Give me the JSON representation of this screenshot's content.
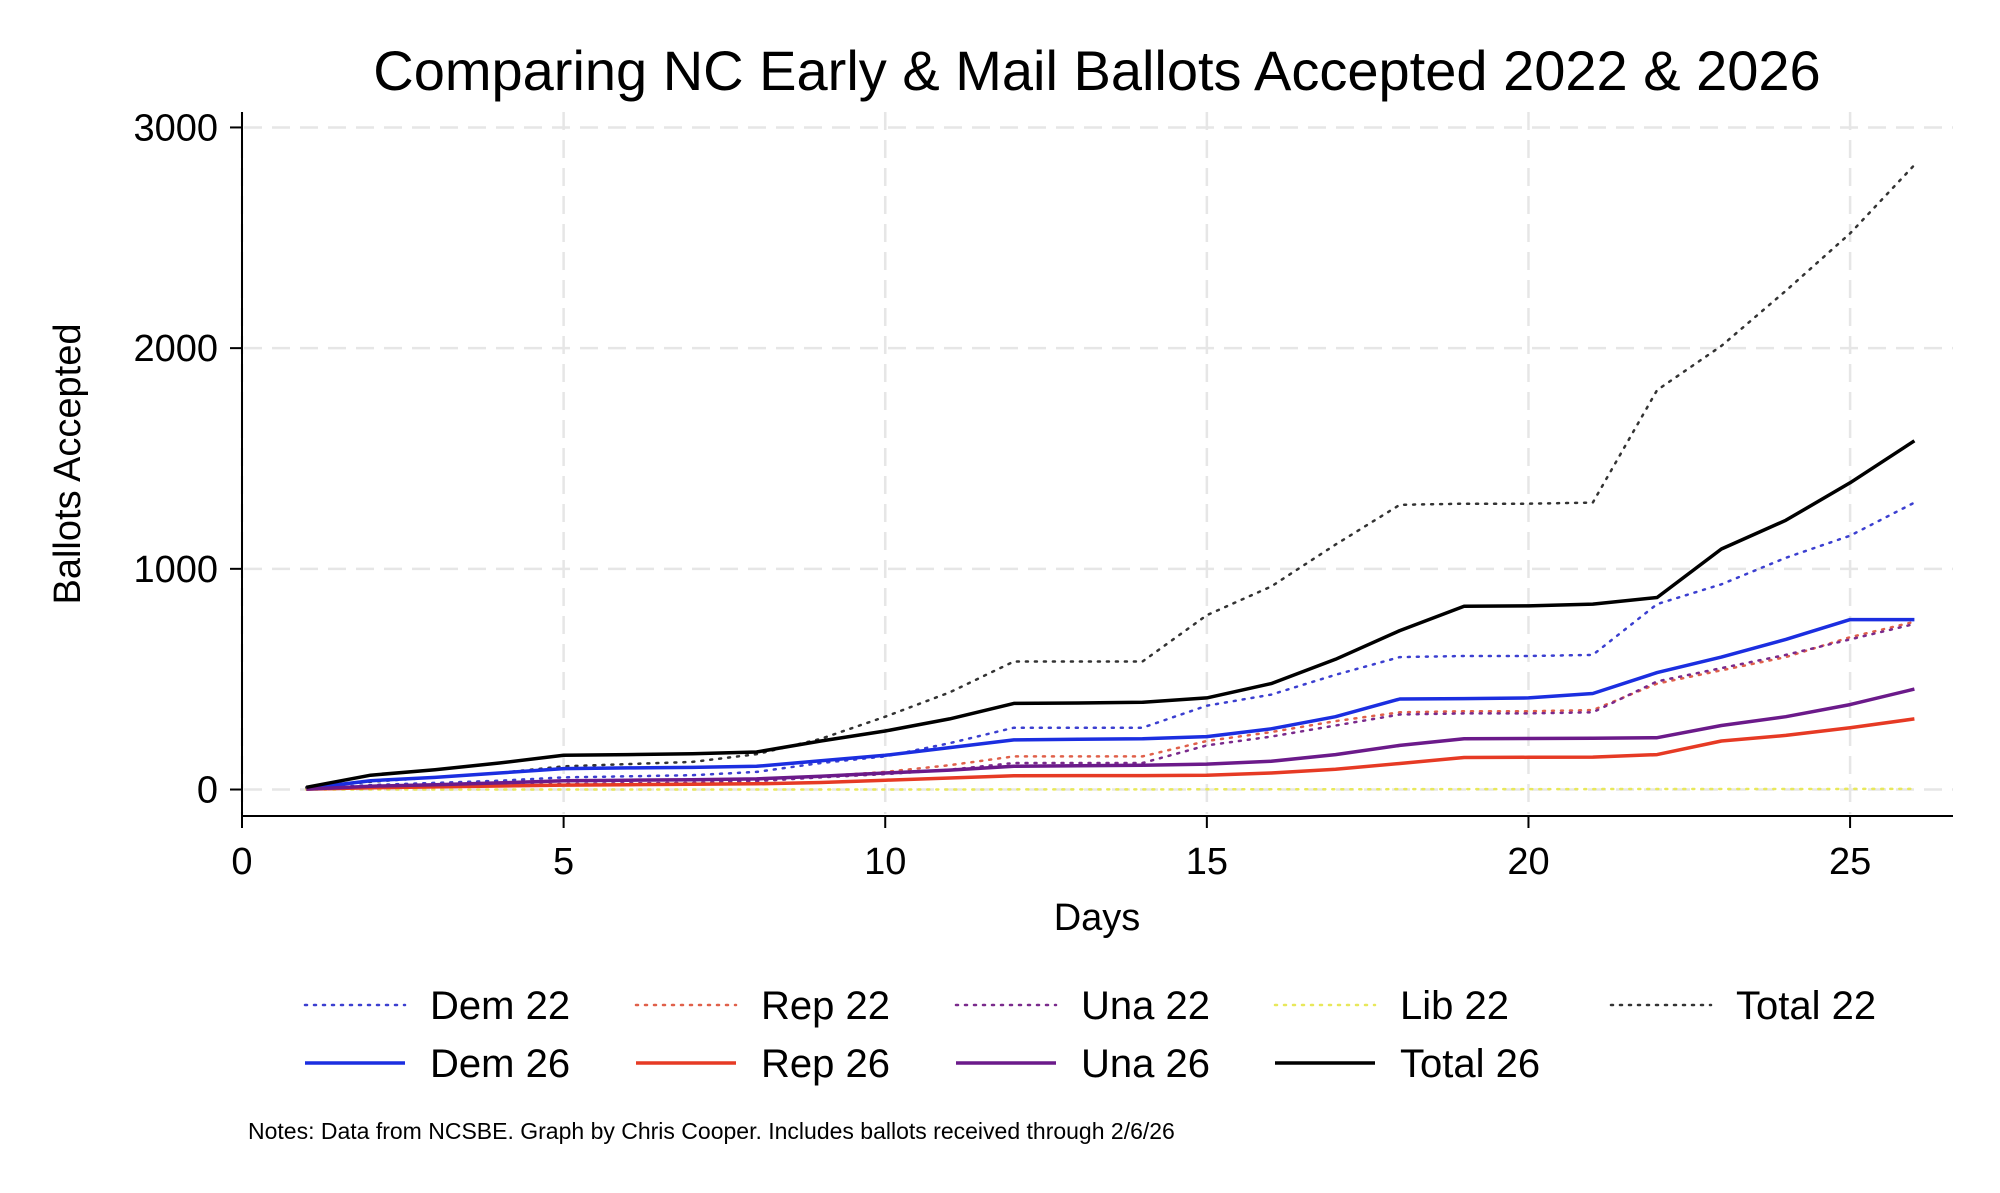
{
  "chart_data": {
    "type": "line",
    "title": "Comparing NC Early & Mail Ballots Accepted 2022 & 2026",
    "xlabel": "Days",
    "ylabel": "Ballots Accepted",
    "xlim": [
      0,
      26.6
    ],
    "ylim": [
      -120,
      3070
    ],
    "xticks": [
      0,
      5,
      10,
      15,
      20,
      25
    ],
    "yticks": [
      0,
      1000,
      2000,
      3000
    ],
    "grid": true,
    "legend_position": "bottom",
    "series": [
      {
        "name": "Dem 22",
        "color": "#3b3fd0",
        "style": "dotted",
        "x": [
          1,
          2,
          3,
          4,
          5,
          6,
          7,
          8,
          9,
          10,
          11,
          12,
          13,
          14,
          15,
          16,
          17,
          18,
          19,
          20,
          21,
          22,
          23,
          24,
          25,
          26
        ],
        "y": [
          5,
          20,
          30,
          40,
          55,
          60,
          65,
          80,
          120,
          150,
          210,
          280,
          280,
          280,
          380,
          430,
          520,
          600,
          605,
          605,
          610,
          840,
          930,
          1050,
          1150,
          1300
        ]
      },
      {
        "name": "Rep 22",
        "color": "#e0604a",
        "style": "dotted",
        "x": [
          1,
          2,
          3,
          4,
          5,
          6,
          7,
          8,
          9,
          10,
          11,
          12,
          13,
          14,
          15,
          16,
          17,
          18,
          19,
          20,
          21,
          22,
          23,
          24,
          25,
          26
        ],
        "y": [
          2,
          8,
          12,
          18,
          25,
          28,
          30,
          40,
          60,
          80,
          110,
          150,
          150,
          150,
          220,
          260,
          310,
          350,
          355,
          355,
          360,
          480,
          540,
          600,
          690,
          760
        ]
      },
      {
        "name": "Una 22",
        "color": "#7a2a8c",
        "style": "dotted",
        "x": [
          1,
          2,
          3,
          4,
          5,
          6,
          7,
          8,
          9,
          10,
          11,
          12,
          13,
          14,
          15,
          16,
          17,
          18,
          19,
          20,
          21,
          22,
          23,
          24,
          25,
          26
        ],
        "y": [
          2,
          8,
          12,
          18,
          25,
          28,
          30,
          38,
          55,
          70,
          90,
          120,
          120,
          120,
          200,
          240,
          290,
          340,
          345,
          345,
          350,
          490,
          550,
          610,
          680,
          750
        ]
      },
      {
        "name": "Lib 22",
        "color": "#e8e85a",
        "style": "dotted",
        "x": [
          1,
          5,
          10,
          15,
          20,
          26
        ],
        "y": [
          0,
          0,
          0,
          1,
          2,
          3
        ]
      },
      {
        "name": "Total 22",
        "color": "#333333",
        "style": "dotted",
        "x": [
          1,
          2,
          3,
          4,
          5,
          6,
          7,
          8,
          9,
          10,
          11,
          12,
          13,
          14,
          15,
          16,
          17,
          18,
          19,
          20,
          21,
          22,
          23,
          24,
          25,
          26
        ],
        "y": [
          10,
          35,
          55,
          75,
          105,
          115,
          125,
          160,
          230,
          330,
          440,
          580,
          580,
          580,
          790,
          920,
          1110,
          1290,
          1295,
          1295,
          1300,
          1810,
          2010,
          2260,
          2520,
          2830
        ]
      },
      {
        "name": "Dem 26",
        "color": "#1b2ee0",
        "style": "solid",
        "x": [
          1,
          2,
          3,
          4,
          5,
          6,
          7,
          8,
          9,
          10,
          11,
          12,
          13,
          14,
          15,
          16,
          17,
          18,
          19,
          20,
          21,
          22,
          23,
          24,
          25,
          26
        ],
        "y": [
          5,
          40,
          55,
          75,
          95,
          98,
          100,
          105,
          130,
          155,
          190,
          225,
          228,
          230,
          240,
          275,
          330,
          410,
          412,
          415,
          435,
          530,
          600,
          680,
          770,
          770
        ]
      },
      {
        "name": "Rep 26",
        "color": "#e63a24",
        "style": "solid",
        "x": [
          1,
          2,
          3,
          4,
          5,
          6,
          7,
          8,
          9,
          10,
          11,
          12,
          13,
          14,
          15,
          16,
          17,
          18,
          19,
          20,
          21,
          22,
          23,
          24,
          25,
          26
        ],
        "y": [
          2,
          8,
          12,
          16,
          20,
          22,
          24,
          26,
          32,
          42,
          52,
          62,
          63,
          63,
          65,
          75,
          92,
          118,
          145,
          146,
          147,
          158,
          220,
          245,
          280,
          320
        ]
      },
      {
        "name": "Una 26",
        "color": "#6b1a8a",
        "style": "solid",
        "x": [
          1,
          2,
          3,
          4,
          5,
          6,
          7,
          8,
          9,
          10,
          11,
          12,
          13,
          14,
          15,
          16,
          17,
          18,
          19,
          20,
          21,
          22,
          23,
          24,
          25,
          26
        ],
        "y": [
          2,
          15,
          22,
          30,
          40,
          42,
          44,
          48,
          60,
          75,
          88,
          105,
          108,
          110,
          115,
          128,
          158,
          200,
          230,
          231,
          232,
          235,
          290,
          330,
          385,
          455
        ]
      },
      {
        "name": "Total 26",
        "color": "#000000",
        "style": "solid",
        "x": [
          1,
          2,
          3,
          4,
          5,
          6,
          7,
          8,
          9,
          10,
          11,
          12,
          13,
          14,
          15,
          16,
          17,
          18,
          19,
          20,
          21,
          22,
          23,
          24,
          25,
          26
        ],
        "y": [
          10,
          65,
          90,
          120,
          155,
          158,
          162,
          170,
          220,
          265,
          320,
          390,
          392,
          395,
          415,
          480,
          590,
          720,
          830,
          832,
          840,
          870,
          1090,
          1220,
          1390,
          1580
        ]
      }
    ],
    "legend_rows": [
      [
        "Dem 22",
        "Rep 22",
        "Una 22",
        "Lib 22",
        "Total 22"
      ],
      [
        "Dem 26",
        "Rep 26",
        "Una 26",
        "Total 26"
      ]
    ],
    "notes": "Notes: Data from NCSBE. Graph by Chris Cooper. Includes ballots received through 2/6/26"
  }
}
